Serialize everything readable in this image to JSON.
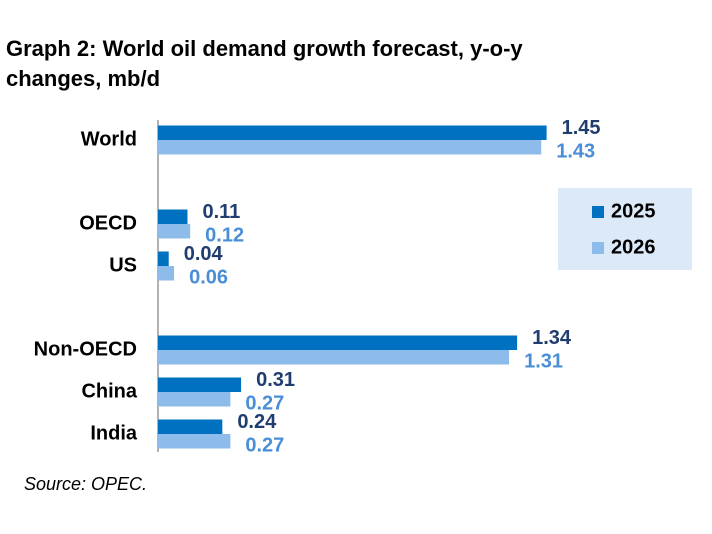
{
  "chart_data": {
    "type": "hbar",
    "title": "Graph 2: World oil demand growth forecast, y-o-y changes, mb/d",
    "source": "Source: OPEC.",
    "categories": [
      "World",
      null,
      "OECD",
      "US",
      null,
      "Non-OECD",
      "China",
      "India"
    ],
    "series": [
      {
        "name": "2025",
        "color": "#0070c0",
        "label_color": "#1f3d6e",
        "values": [
          1.45,
          null,
          0.11,
          0.04,
          null,
          1.34,
          0.31,
          0.24
        ]
      },
      {
        "name": "2026",
        "color": "#8dbbea",
        "label_color": "#4a8fd6",
        "values": [
          1.43,
          null,
          0.12,
          0.06,
          null,
          1.31,
          0.27,
          0.27
        ]
      }
    ],
    "legend": "right"
  }
}
